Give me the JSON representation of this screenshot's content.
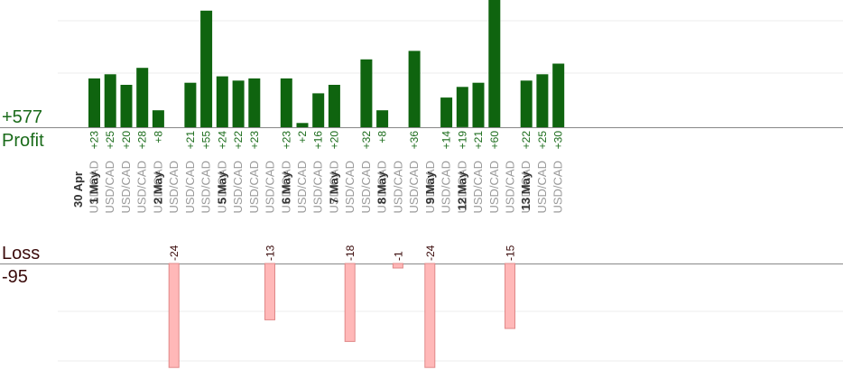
{
  "summary": {
    "profit_total": "+577",
    "profit_label": "Profit",
    "loss_label": "Loss",
    "loss_total": "-95"
  },
  "colors": {
    "profit_bar": "#0f640f",
    "profit_text": "#1a6b1a",
    "loss_bar_fill": "#ffb8b8",
    "loss_bar_stroke": "#e08888",
    "loss_text": "#3a0a0a",
    "date_text": "#333333",
    "pair_text": "#9a9a9a",
    "axis": "#888888",
    "grid": "#ececec"
  },
  "chart_data": {
    "type": "bar",
    "title": "",
    "ylim_profit": [
      0,
      60
    ],
    "ylim_loss": [
      -27,
      0
    ],
    "grid": true,
    "dates": [
      "30 Apr",
      "1 May",
      "2 May",
      "5 May",
      "6 May",
      "7 May",
      "8 May",
      "9 May",
      "12 May",
      "13 May"
    ],
    "trades": [
      {
        "date": "30 Apr",
        "pair": "USD/CAD",
        "value": 23,
        "label": "+23"
      },
      {
        "date": "1 May",
        "pair": "USD/CAD",
        "value": 25,
        "label": "+25"
      },
      {
        "date": "1 May",
        "pair": "USD/CAD",
        "value": 20,
        "label": "+20"
      },
      {
        "date": "1 May",
        "pair": "USD/CAD",
        "value": 28,
        "label": "+28"
      },
      {
        "date": "1 May",
        "pair": "USD/CAD",
        "value": 8,
        "label": "+8"
      },
      {
        "date": "2 May",
        "pair": "USD/CAD",
        "value": -24,
        "label": "-24"
      },
      {
        "date": "2 May",
        "pair": "USD/CAD",
        "value": 21,
        "label": "+21"
      },
      {
        "date": "2 May",
        "pair": "USD/CAD",
        "value": 55,
        "label": "+55"
      },
      {
        "date": "2 May",
        "pair": "USD/CAD",
        "value": 24,
        "label": "+24"
      },
      {
        "date": "5 May",
        "pair": "USD/CAD",
        "value": 22,
        "label": "+22"
      },
      {
        "date": "5 May",
        "pair": "USD/CAD",
        "value": 23,
        "label": "+23"
      },
      {
        "date": "5 May",
        "pair": "USD/CAD",
        "value": -13,
        "label": "-13"
      },
      {
        "date": "5 May",
        "pair": "USD/CAD",
        "value": 23,
        "label": "+23"
      },
      {
        "date": "6 May",
        "pair": "USD/CAD",
        "value": 2,
        "label": "+2"
      },
      {
        "date": "6 May",
        "pair": "USD/CAD",
        "value": 16,
        "label": "+16"
      },
      {
        "date": "6 May",
        "pair": "USD/CAD",
        "value": 20,
        "label": "+20"
      },
      {
        "date": "7 May",
        "pair": "USD/CAD",
        "value": -18,
        "label": "-18"
      },
      {
        "date": "7 May",
        "pair": "USD/CAD",
        "value": 32,
        "label": "+32"
      },
      {
        "date": "7 May",
        "pair": "USD/CAD",
        "value": 8,
        "label": "+8"
      },
      {
        "date": "8 May",
        "pair": "USD/CAD",
        "value": -1,
        "label": "-1"
      },
      {
        "date": "8 May",
        "pair": "USD/CAD",
        "value": 36,
        "label": "+36"
      },
      {
        "date": "8 May",
        "pair": "USD/CAD",
        "value": -24,
        "label": "-24"
      },
      {
        "date": "9 May",
        "pair": "USD/CAD",
        "value": 14,
        "label": "+14"
      },
      {
        "date": "9 May",
        "pair": "USD/CAD",
        "value": 19,
        "label": "+19"
      },
      {
        "date": "12 May",
        "pair": "USD/CAD",
        "value": 21,
        "label": "+21"
      },
      {
        "date": "12 May",
        "pair": "USD/CAD",
        "value": 60,
        "label": "+60"
      },
      {
        "date": "12 May",
        "pair": "USD/CAD",
        "value": -15,
        "label": "-15"
      },
      {
        "date": "12 May",
        "pair": "USD/CAD",
        "value": 22,
        "label": "+22"
      },
      {
        "date": "13 May",
        "pair": "USD/CAD",
        "value": 25,
        "label": "+25"
      },
      {
        "date": "13 May",
        "pair": "USD/CAD",
        "value": 30,
        "label": "+30"
      }
    ]
  }
}
